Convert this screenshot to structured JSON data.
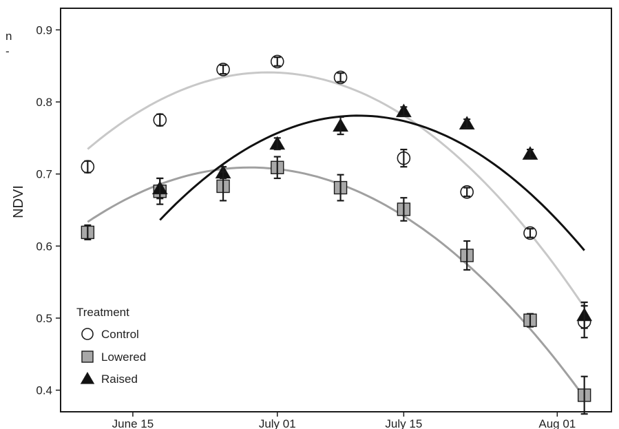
{
  "side_text": [
    "n",
    "-"
  ],
  "chart_data": {
    "type": "scatter",
    "title": "",
    "xlabel": "",
    "ylabel": "NDVI",
    "xlim": [
      "2012-06-07",
      "2012-08-07"
    ],
    "ylim": [
      0.37,
      0.93
    ],
    "xticks": [
      {
        "date": "2012-06-15",
        "label": "June 15"
      },
      {
        "date": "2012-07-01",
        "label": "July 01"
      },
      {
        "date": "2012-07-15",
        "label": "July 15"
      },
      {
        "date": "2012-08-01",
        "label": "Aug 01"
      }
    ],
    "yticks": [
      0.4,
      0.5,
      0.6,
      0.7,
      0.8,
      0.9
    ],
    "grid": false,
    "legend": {
      "title": "Treatment",
      "position": "bottom-left"
    },
    "series": [
      {
        "name": "Control",
        "marker": "circle",
        "fill": "#ffffff",
        "curve_color": "#c8c8c8",
        "points": [
          {
            "x": "2012-06-10",
            "y": 0.71,
            "err": 0.008
          },
          {
            "x": "2012-06-18",
            "y": 0.775,
            "err": 0.008
          },
          {
            "x": "2012-06-25",
            "y": 0.845,
            "err": 0.006
          },
          {
            "x": "2012-07-01",
            "y": 0.856,
            "err": 0.006
          },
          {
            "x": "2012-07-08",
            "y": 0.834,
            "err": 0.006
          },
          {
            "x": "2012-07-15",
            "y": 0.722,
            "err": 0.012
          },
          {
            "x": "2012-07-22",
            "y": 0.675,
            "err": 0.006
          },
          {
            "x": "2012-07-29",
            "y": 0.618,
            "err": 0.006
          },
          {
            "x": "2012-08-04",
            "y": 0.495,
            "err": 0.022
          }
        ],
        "fit": {
          "vertex_x": "2012-06-30",
          "vertex_y": 0.841,
          "end_x": "2012-08-04",
          "end_y": 0.515,
          "start_x": "2012-06-10"
        }
      },
      {
        "name": "Lowered",
        "marker": "square",
        "fill": "#a8a8a8",
        "curve_color": "#a0a0a0",
        "points": [
          {
            "x": "2012-06-10",
            "y": 0.619,
            "err": 0.01
          },
          {
            "x": "2012-06-18",
            "y": 0.676,
            "err": 0.018
          },
          {
            "x": "2012-06-25",
            "y": 0.683,
            "err": 0.02
          },
          {
            "x": "2012-07-01",
            "y": 0.709,
            "err": 0.015
          },
          {
            "x": "2012-07-08",
            "y": 0.681,
            "err": 0.018
          },
          {
            "x": "2012-07-15",
            "y": 0.651,
            "err": 0.016
          },
          {
            "x": "2012-07-22",
            "y": 0.587,
            "err": 0.02
          },
          {
            "x": "2012-07-29",
            "y": 0.497,
            "err": 0.009
          },
          {
            "x": "2012-08-04",
            "y": 0.393,
            "err": 0.026
          }
        ],
        "fit": {
          "vertex_x": "2012-06-28",
          "vertex_y": 0.709,
          "end_x": "2012-08-04",
          "end_y": 0.39,
          "start_x": "2012-06-10"
        }
      },
      {
        "name": "Raised",
        "marker": "triangle",
        "fill": "#111111",
        "curve_color": "#111111",
        "points": [
          {
            "x": "2012-06-18",
            "y": 0.68,
            "err": 0.014
          },
          {
            "x": "2012-06-25",
            "y": 0.702,
            "err": 0.008
          },
          {
            "x": "2012-07-01",
            "y": 0.742,
            "err": 0.008
          },
          {
            "x": "2012-07-08",
            "y": 0.767,
            "err": 0.012
          },
          {
            "x": "2012-07-15",
            "y": 0.787,
            "err": 0.006
          },
          {
            "x": "2012-07-22",
            "y": 0.77,
            "err": 0.006
          },
          {
            "x": "2012-07-29",
            "y": 0.728,
            "err": 0.006
          },
          {
            "x": "2012-08-04",
            "y": 0.504,
            "err": 0.018
          }
        ],
        "fit": {
          "vertex_x": "2012-07-10",
          "vertex_y": 0.781,
          "end_x": "2012-08-04",
          "end_y": 0.594,
          "start_x": "2012-06-18"
        }
      }
    ]
  }
}
